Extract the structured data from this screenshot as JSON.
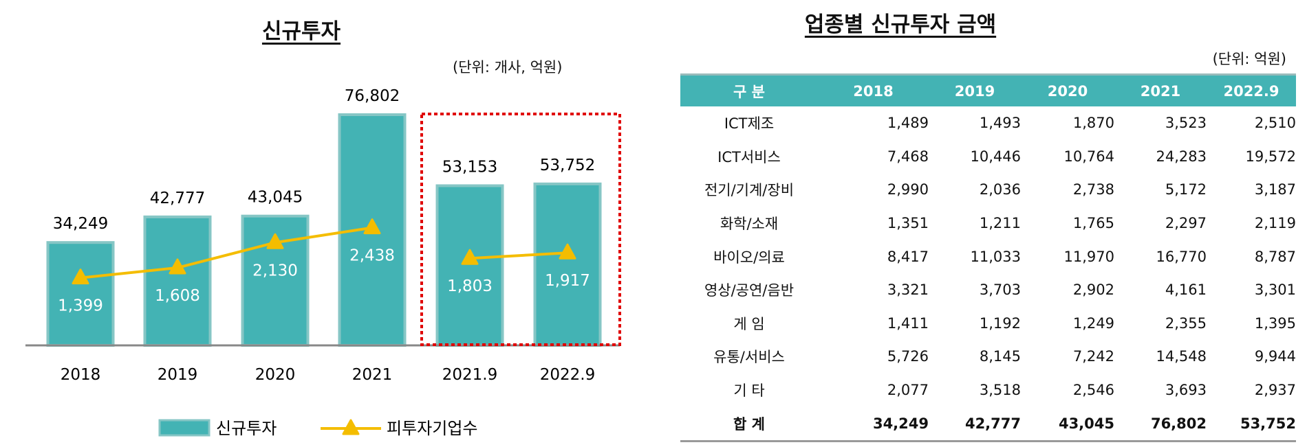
{
  "chart_data": {
    "type": "bar",
    "title": "신규투자",
    "unit": "(단위:  개사,  억원)",
    "categories": [
      "2018",
      "2019",
      "2020",
      "2021",
      "2021.9",
      "2022.9"
    ],
    "series": [
      {
        "name": "신규투자",
        "type": "bar",
        "values": [
          34249,
          42777,
          43045,
          76802,
          53153,
          53752
        ],
        "labels": [
          "34,249",
          "42,777",
          "43,045",
          "76,802",
          "53,153",
          "53,752"
        ]
      },
      {
        "name": "피투자기업수",
        "type": "line",
        "values": [
          1399,
          1608,
          2130,
          2438,
          1803,
          1917
        ],
        "labels": [
          "1,399",
          "1,608",
          "2,130",
          "2,438",
          "1,803",
          "1,917"
        ]
      }
    ],
    "highlight": [
      "2021.9",
      "2022.9"
    ],
    "legend": "bottom",
    "colors": {
      "bar": "#43b3b4",
      "bar_edge": "#86c6c5",
      "line": "#f4bd00",
      "highlight": "#e00000",
      "axis": "#888888"
    }
  },
  "table": {
    "title": "업종별 신규투자 금액",
    "unit": "(단위:  억원)",
    "headers": [
      "구 분",
      "2018",
      "2019",
      "2020",
      "2021",
      "2022.9"
    ],
    "rows": [
      [
        "ICT제조",
        "1,489",
        "1,493",
        "1,870",
        "3,523",
        "2,510"
      ],
      [
        "ICT서비스",
        "7,468",
        "10,446",
        "10,764",
        "24,283",
        "19,572"
      ],
      [
        "전기/기계/장비",
        "2,990",
        "2,036",
        "2,738",
        "5,172",
        "3,187"
      ],
      [
        "화학/소재",
        "1,351",
        "1,211",
        "1,765",
        "2,297",
        "2,119"
      ],
      [
        "바이오/의료",
        "8,417",
        "11,033",
        "11,970",
        "16,770",
        "8,787"
      ],
      [
        "영상/공연/음반",
        "3,321",
        "3,703",
        "2,902",
        "4,161",
        "3,301"
      ],
      [
        "게 임",
        "1,411",
        "1,192",
        "1,249",
        "2,355",
        "1,395"
      ],
      [
        "유통/서비스",
        "5,726",
        "8,145",
        "7,242",
        "14,548",
        "9,944"
      ],
      [
        "기 타",
        "2,077",
        "3,518",
        "2,546",
        "3,693",
        "2,937"
      ],
      [
        "합 계",
        "34,249",
        "42,777",
        "43,045",
        "76,802",
        "53,752"
      ]
    ]
  }
}
